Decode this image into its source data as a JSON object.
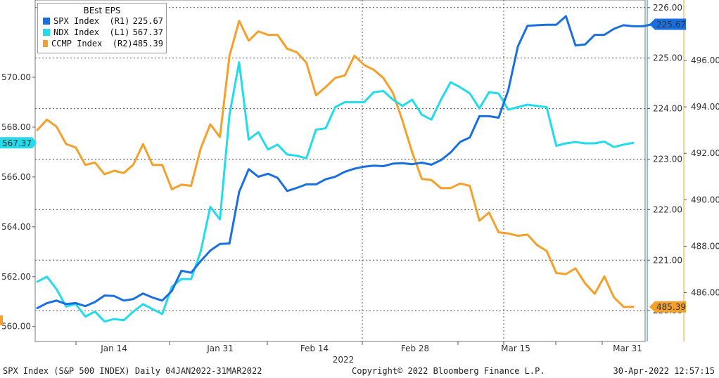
{
  "chart_data": {
    "type": "line",
    "title": "BEst EPS",
    "x_labels": [
      "Jan 14",
      "Jan 31",
      "Feb 14",
      "Feb 28",
      "Mar 15",
      "Mar 31"
    ],
    "x_year_label": "2022",
    "left_axis": {
      "ylim": [
        559.4,
        573.1
      ],
      "ticks": [
        "560.00",
        "562.00",
        "564.00",
        "566.00",
        "568.00",
        "570.00"
      ],
      "color": "#00d8e8"
    },
    "right1_axis": {
      "ylim": [
        219.39,
        226.15
      ],
      "ticks": [
        "220.00",
        "221.00",
        "222.00",
        "223.00",
        "224.00",
        "225.00",
        "226.00"
      ],
      "color": "#1a78e0"
    },
    "right2_axis": {
      "ylim": [
        483.9,
        498.6
      ],
      "ticks": [
        "486.00",
        "488.00",
        "490.00",
        "492.00",
        "494.00",
        "496.00"
      ],
      "color": "#f5a030"
    },
    "series": [
      {
        "name": "SPX Index  (R1)",
        "last": "225.67",
        "axis": "right1",
        "color": "#1a6fe0",
        "values": [
          220.05,
          220.15,
          220.2,
          220.13,
          220.15,
          220.09,
          220.17,
          220.3,
          220.29,
          220.2,
          220.23,
          220.34,
          220.26,
          220.2,
          220.39,
          220.79,
          220.75,
          220.98,
          221.19,
          221.32,
          221.33,
          222.35,
          222.8,
          222.65,
          222.71,
          222.63,
          222.37,
          222.43,
          222.5,
          222.5,
          222.6,
          222.65,
          222.75,
          222.81,
          222.85,
          222.87,
          222.86,
          222.91,
          222.92,
          222.9,
          222.93,
          222.89,
          222.98,
          223.13,
          223.34,
          223.43,
          223.85,
          223.85,
          223.82,
          224.36,
          225.23,
          225.64,
          225.65,
          225.66,
          225.66,
          225.83,
          225.25,
          225.27,
          225.46,
          225.46,
          225.58,
          225.65,
          225.63,
          225.63,
          225.67
        ]
      },
      {
        "name": "NDX Index  (L1)",
        "last": "567.37",
        "axis": "left",
        "color": "#22dcec",
        "values": [
          561.8,
          562.0,
          561.5,
          560.8,
          560.9,
          560.4,
          560.6,
          560.2,
          560.3,
          560.25,
          560.6,
          560.9,
          560.7,
          560.5,
          561.6,
          561.9,
          561.9,
          563.0,
          564.8,
          564.3,
          568.5,
          570.6,
          567.5,
          567.8,
          567.1,
          567.3,
          566.9,
          566.85,
          566.75,
          567.9,
          567.95,
          568.8,
          569.0,
          569.0,
          569.0,
          569.4,
          569.45,
          569.1,
          568.85,
          569.1,
          568.5,
          568.3,
          569.1,
          569.8,
          569.6,
          569.35,
          568.75,
          569.4,
          569.35,
          568.7,
          568.8,
          568.9,
          568.85,
          568.8,
          567.25,
          567.35,
          567.4,
          567.35,
          567.35,
          567.42,
          567.2,
          567.3,
          567.37
        ]
      },
      {
        "name": "CCMP Index  (R2)",
        "last": "485.39",
        "axis": "right2",
        "color": "#f5a02a",
        "values": [
          493.0,
          493.45,
          493.15,
          492.4,
          492.25,
          491.5,
          491.6,
          491.1,
          491.25,
          491.15,
          491.52,
          492.4,
          491.5,
          491.5,
          490.45,
          490.65,
          490.6,
          492.2,
          493.25,
          492.7,
          496.2,
          497.7,
          496.85,
          497.25,
          497.1,
          497.1,
          496.5,
          496.35,
          495.9,
          494.5,
          494.85,
          495.25,
          495.35,
          496.2,
          495.8,
          495.6,
          495.25,
          494.6,
          493.4,
          492.05,
          490.9,
          490.85,
          490.5,
          490.5,
          490.7,
          490.6,
          489.1,
          489.45,
          488.6,
          488.55,
          488.45,
          488.5,
          488.05,
          487.8,
          486.85,
          486.8,
          487.05,
          486.4,
          485.95,
          486.7,
          485.8,
          485.39,
          485.39
        ]
      }
    ],
    "last_value_tags": [
      {
        "text": "225.67",
        "axis": "right1",
        "value": 225.67,
        "side": "right",
        "color": "#1a6fe0",
        "text_color": "#ffffff"
      },
      {
        "text": "567.37",
        "axis": "left",
        "value": 567.37,
        "side": "left",
        "color": "#22dcec",
        "text_color": "#000000"
      },
      {
        "text": "485.39",
        "axis": "right2",
        "value": 485.39,
        "side": "right",
        "color": "#f5a02a",
        "text_color": "#000000"
      }
    ],
    "grid": "dashed-horizontal"
  },
  "footer": {
    "left": "SPX Index (S&P 500 INDEX) Daily 04JAN2022-31MAR2022",
    "center": "Copyright© 2022 Bloomberg Finance L.P.",
    "right": "30-Apr-2022 12:57:15"
  }
}
